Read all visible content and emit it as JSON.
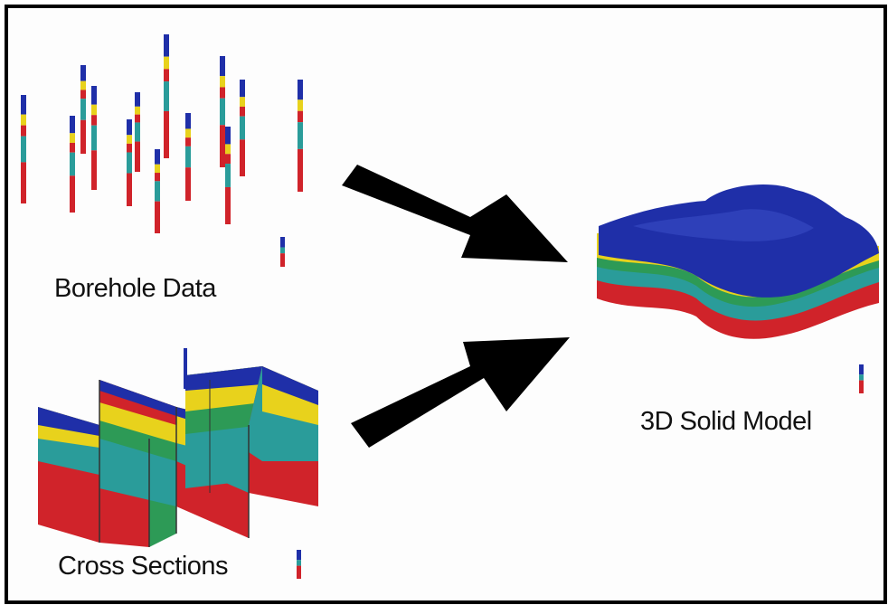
{
  "labels": {
    "borehole": "Borehole Data",
    "cross_sections": "Cross Sections",
    "solid_model": "3D Solid Model"
  },
  "colors": {
    "layer_blue": "#1f2fa8",
    "layer_yellow": "#e8d21c",
    "layer_green": "#2d9a56",
    "layer_teal": "#2a9c9a",
    "layer_red": "#d0232a",
    "arrow": "#000000"
  }
}
